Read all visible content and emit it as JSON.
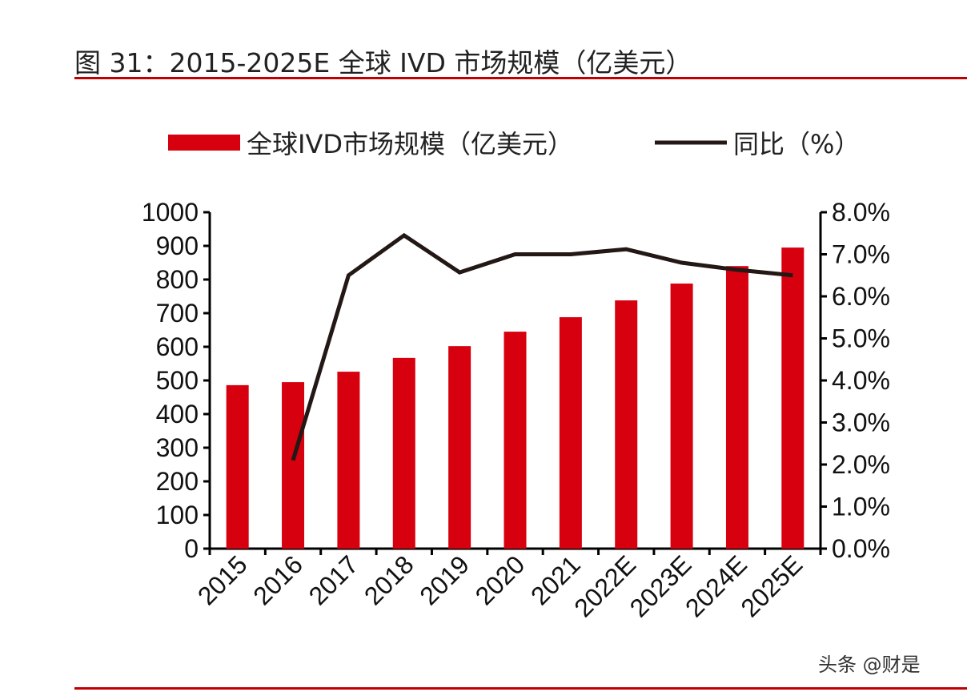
{
  "title": "图 31：2015-2025E 全球 IVD 市场规模（亿美元）",
  "watermark": "头条 @财是",
  "chart_data": {
    "type": "bar+line",
    "title": "图 31：2015-2025E 全球 IVD 市场规模（亿美元）",
    "categories": [
      "2015",
      "2016",
      "2017",
      "2018",
      "2019",
      "2020",
      "2021",
      "2022E",
      "2023E",
      "2024E",
      "2025E"
    ],
    "series": [
      {
        "name": "全球IVD市场规模（亿美元）",
        "type": "bar",
        "axis": "left",
        "color": "#d7000f",
        "values": [
          486,
          495,
          526,
          567,
          602,
          645,
          688,
          738,
          788,
          840,
          895
        ]
      },
      {
        "name": "同比（%）",
        "type": "line",
        "axis": "right",
        "color": "#231815",
        "values": [
          null,
          2.1,
          6.5,
          7.45,
          6.57,
          7.0,
          7.0,
          7.12,
          6.8,
          6.63,
          6.5
        ]
      }
    ],
    "ylim_left": [
      0,
      1000
    ],
    "yticks_left": [
      "0",
      "100",
      "200",
      "300",
      "400",
      "500",
      "600",
      "700",
      "800",
      "900",
      "1000"
    ],
    "ylim_right": [
      0,
      8
    ],
    "yticks_right": [
      "0.0%",
      "1.0%",
      "2.0%",
      "3.0%",
      "4.0%",
      "5.0%",
      "6.0%",
      "7.0%",
      "8.0%"
    ],
    "grid": false,
    "legend": "top"
  }
}
